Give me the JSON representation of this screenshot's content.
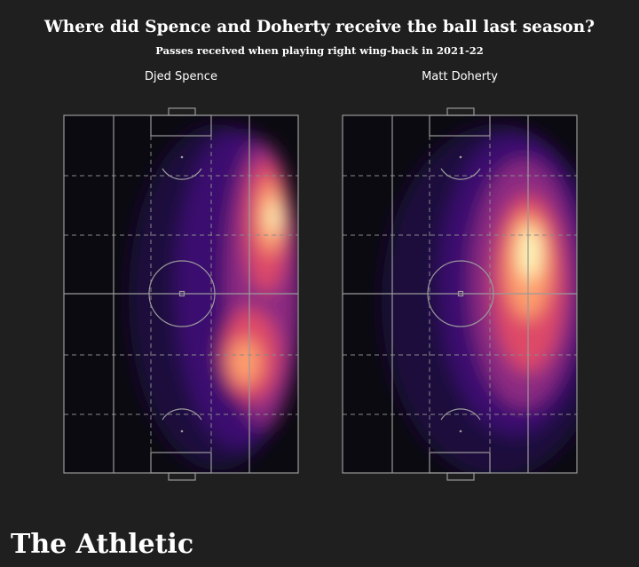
{
  "header": {
    "title": "Where did Spence and Doherty receive the ball last season?",
    "subtitle": "Passes received when playing right wing-back in 2021-22"
  },
  "panels": [
    {
      "label": "Djed Spence"
    },
    {
      "label": "Matt Doherty"
    }
  ],
  "footer": {
    "brand": "The Athletic"
  }
}
